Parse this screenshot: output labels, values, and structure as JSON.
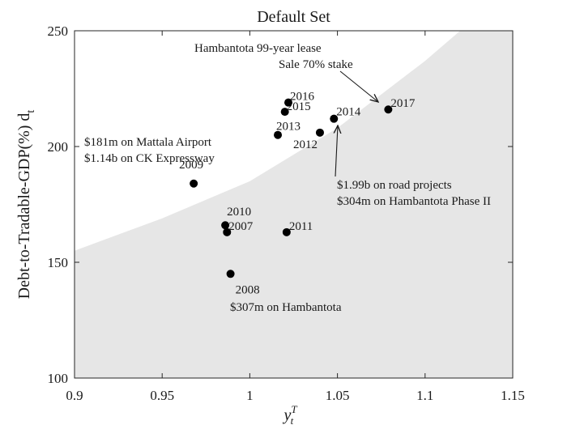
{
  "chart_data": {
    "type": "scatter",
    "title": "Default Set",
    "xlabel_base": "y",
    "xlabel_sub": "t",
    "xlabel_sup": "T",
    "ylabel": "Debt-to-Tradable-GDP(%) d",
    "ylabel_sub": "t",
    "xlim": [
      0.9,
      1.15
    ],
    "ylim": [
      100,
      250
    ],
    "xticks": [
      0.9,
      0.95,
      1,
      1.05,
      1.1,
      1.15
    ],
    "xtick_labels": [
      "0.9",
      "0.95",
      "1",
      "1.05",
      "1.1",
      "1.15"
    ],
    "yticks": [
      100,
      150,
      200,
      250
    ],
    "ytick_labels": [
      "100",
      "150",
      "200",
      "250"
    ],
    "grid": false,
    "points": [
      {
        "label": "2007",
        "x": 0.987,
        "y": 163
      },
      {
        "label": "2008",
        "x": 0.989,
        "y": 145
      },
      {
        "label": "2009",
        "x": 0.968,
        "y": 184
      },
      {
        "label": "2010",
        "x": 0.986,
        "y": 166
      },
      {
        "label": "2011",
        "x": 1.021,
        "y": 163
      },
      {
        "label": "2012",
        "x": 1.04,
        "y": 206
      },
      {
        "label": "2013",
        "x": 1.016,
        "y": 205
      },
      {
        "label": "2014",
        "x": 1.048,
        "y": 212
      },
      {
        "label": "2015",
        "x": 1.02,
        "y": 215
      },
      {
        "label": "2016",
        "x": 1.022,
        "y": 219
      },
      {
        "label": "2017",
        "x": 1.079,
        "y": 216
      }
    ],
    "default_region": {
      "description_color": "#e6e6e6",
      "boundary": [
        {
          "x": 0.9,
          "y": 155
        },
        {
          "x": 0.95,
          "y": 169
        },
        {
          "x": 1.0,
          "y": 185
        },
        {
          "x": 1.05,
          "y": 208
        },
        {
          "x": 1.1,
          "y": 237
        },
        {
          "x": 1.12,
          "y": 250
        }
      ]
    },
    "annotations": [
      {
        "lines": [
          "Hambantota  99-year lease",
          "Sale 70% stake"
        ]
      },
      {
        "lines": [
          "$181m on Mattala Airport",
          "$1.14b on CK Expressway"
        ]
      },
      {
        "lines": [
          "$1.99b on road projects",
          "$304m on Hambantota Phase II"
        ]
      },
      {
        "lines": [
          "$307m on Hambantota"
        ]
      }
    ],
    "colors": {
      "region": "#e6e6e6",
      "marker": "#000000",
      "axis": "#262626"
    }
  }
}
